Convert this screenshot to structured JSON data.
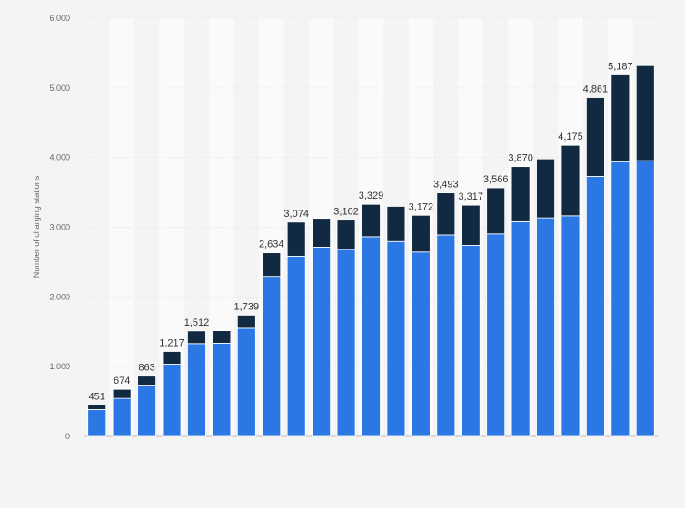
{
  "chart_data": {
    "type": "bar",
    "stacked": true,
    "ylabel": "Number of charging stations",
    "xlabel": "",
    "ylim": [
      0,
      6000
    ],
    "yticks": [
      0,
      1000,
      2000,
      3000,
      4000,
      5000,
      6000
    ],
    "ytick_labels": [
      "0",
      "1,000",
      "2,000",
      "3,000",
      "4,000",
      "5,000",
      "6,000"
    ],
    "grid": true,
    "categories_count": 23,
    "series": [
      {
        "color": "#2b78e4",
        "values": [
          385,
          545,
          735,
          1035,
          1330,
          1335,
          1550,
          2295,
          2585,
          2715,
          2680,
          2865,
          2795,
          2645,
          2890,
          2740,
          2905,
          3080,
          3135,
          3165,
          3730,
          3940,
          3955
        ]
      },
      {
        "color": "#112a42",
        "values": [
          66,
          129,
          128,
          182,
          182,
          180,
          189,
          339,
          489,
          413,
          422,
          464,
          505,
          527,
          603,
          577,
          661,
          790,
          845,
          1010,
          1131,
          1247,
          1365
        ]
      }
    ],
    "totals": [
      451,
      674,
      863,
      1217,
      1512,
      1515,
      1739,
      2634,
      3074,
      3128,
      3102,
      3329,
      3300,
      3172,
      3493,
      3317,
      3566,
      3870,
      3980,
      4175,
      4861,
      5187,
      5320
    ],
    "data_labels": [
      "451",
      "674",
      "863",
      "1,217",
      "1,512",
      "",
      "1,739",
      "2,634",
      "3,074",
      "",
      "3,102",
      "3,329",
      "",
      "3,172",
      "3,493",
      "3,317",
      "3,566",
      "3,870",
      "",
      "4,175",
      "4,861",
      "5,187",
      ""
    ]
  }
}
